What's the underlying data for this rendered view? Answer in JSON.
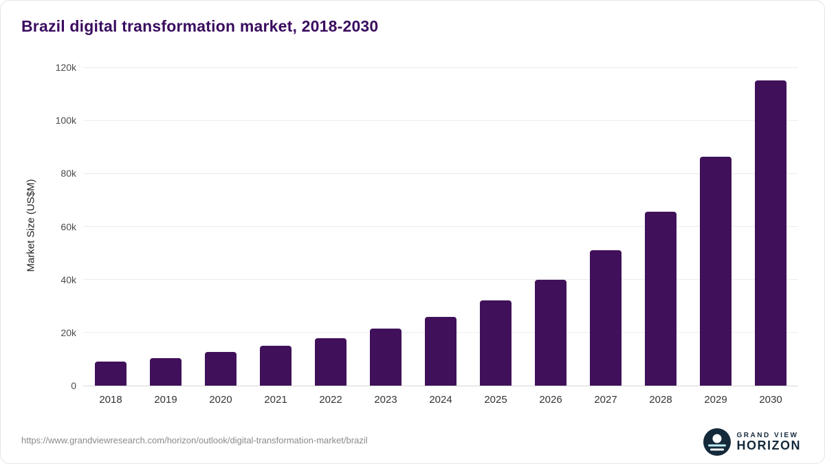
{
  "chart_data": {
    "type": "bar",
    "title": "Brazil digital transformation market, 2018-2030",
    "categories": [
      "2018",
      "2019",
      "2020",
      "2021",
      "2022",
      "2023",
      "2024",
      "2025",
      "2026",
      "2027",
      "2028",
      "2029",
      "2030"
    ],
    "values": [
      9000,
      10500,
      12700,
      15000,
      17800,
      21400,
      26000,
      32200,
      40000,
      51000,
      65500,
      86300,
      115000
    ],
    "xlabel": "",
    "ylabel": "Market Size (US$M)",
    "ylim": [
      0,
      120000
    ],
    "yticks": [
      {
        "value": 0,
        "label": "0"
      },
      {
        "value": 20000,
        "label": "20k"
      },
      {
        "value": 40000,
        "label": "40k"
      },
      {
        "value": 60000,
        "label": "60k"
      },
      {
        "value": 80000,
        "label": "80k"
      },
      {
        "value": 100000,
        "label": "100k"
      },
      {
        "value": 120000,
        "label": "120k"
      }
    ],
    "grid": true,
    "legend": "none",
    "bar_color": "#40115a"
  },
  "colors": {
    "title": "#3a0c5f",
    "gridline": "#ececec",
    "axis_line": "#d5d5d5",
    "tick_text": "#4a4a4a"
  },
  "footer": {
    "source_url": "https://www.grandviewresearch.com/horizon/outlook/digital-transformation-market/brazil",
    "logo_top": "GRAND VIEW",
    "logo_bottom": "HORIZON"
  }
}
